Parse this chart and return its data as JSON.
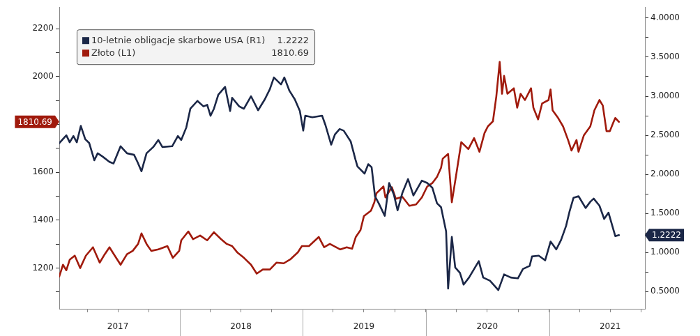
{
  "chart_data": {
    "type": "line",
    "legend": "top left",
    "grid": false,
    "annotations": [
      "1.2222",
      "1810.69"
    ],
    "xlim": [
      "2017-01-08",
      "2021-10-12"
    ],
    "xticks": [
      {
        "value": "2017-04-01",
        "label": null
      },
      {
        "value": "2017-07-01",
        "label": "2017"
      },
      {
        "value": "2017-10-01",
        "label": null
      },
      {
        "value": "2018-01-01",
        "label": null
      },
      {
        "value": "2018-04-01",
        "label": null
      },
      {
        "value": "2018-07-01",
        "label": "2018"
      },
      {
        "value": "2018-10-01",
        "label": null
      },
      {
        "value": "2019-01-01",
        "label": null
      },
      {
        "value": "2019-04-01",
        "label": null
      },
      {
        "value": "2019-07-01",
        "label": "2019"
      },
      {
        "value": "2019-10-01",
        "label": null
      },
      {
        "value": "2020-01-01",
        "label": null
      },
      {
        "value": "2020-04-01",
        "label": null
      },
      {
        "value": "2020-07-01",
        "label": "2020"
      },
      {
        "value": "2020-10-01",
        "label": null
      },
      {
        "value": "2021-01-01",
        "label": null
      },
      {
        "value": "2021-04-01",
        "label": null
      },
      {
        "value": "2021-07-01",
        "label": "2021"
      },
      {
        "value": "2021-10-01",
        "label": null
      }
    ],
    "ylim": [
      1030,
      2290
    ],
    "yticks": [
      {
        "value": 1100,
        "label": null
      },
      1200,
      {
        "value": 1300,
        "label": null
      },
      1400,
      {
        "value": 1500,
        "label": null
      },
      1600,
      {
        "value": 1700,
        "label": null
      },
      {
        "value": 1800,
        "label": null
      },
      {
        "value": 1900,
        "label": null
      },
      2000,
      {
        "value": 2100,
        "label": null
      },
      2200
    ],
    "y2lim": [
      0.28,
      4.14
    ],
    "y2ticks": [
      {
        "value": 0.5,
        "label": "0.5000"
      },
      {
        "value": 0.75,
        "label": null
      },
      {
        "value": 1,
        "label": "1.0000"
      },
      {
        "value": 1.25,
        "label": null
      },
      {
        "value": 1.5,
        "label": "1.5000"
      },
      {
        "value": 1.75,
        "label": null
      },
      {
        "value": 2,
        "label": "2.0000"
      },
      {
        "value": 2.25,
        "label": null
      },
      {
        "value": 2.5,
        "label": "2.5000"
      },
      {
        "value": 2.75,
        "label": null
      },
      {
        "value": 3,
        "label": "3.0000"
      },
      {
        "value": 3.25,
        "label": null
      },
      {
        "value": 3.5,
        "label": "3.5000"
      },
      {
        "value": 3.75,
        "label": null
      },
      {
        "value": 4,
        "label": "4.0000"
      }
    ],
    "series": [
      {
        "name": "10-letnie obligacje skarbowe USA (R1)",
        "color": "#1b2747",
        "axis": "y2",
        "x": [
          "2017-01-08",
          "2017-01-29",
          "2017-02-08",
          "2017-02-19",
          "2017-03-01",
          "2017-03-13",
          "2017-03-26",
          "2017-04-07",
          "2017-04-22",
          "2017-05-02",
          "2017-05-16",
          "2017-06-06",
          "2017-06-18",
          "2017-07-09",
          "2017-07-28",
          "2017-08-18",
          "2017-08-28",
          "2017-09-09",
          "2017-09-24",
          "2017-10-14",
          "2017-10-29",
          "2017-11-10",
          "2017-12-09",
          "2017-12-26",
          "2018-01-05",
          "2018-01-20",
          "2018-02-01",
          "2018-02-22",
          "2018-03-12",
          "2018-03-23",
          "2018-04-02",
          "2018-04-12",
          "2018-04-25",
          "2018-05-15",
          "2018-05-30",
          "2018-06-05",
          "2018-06-26",
          "2018-07-10",
          "2018-07-31",
          "2018-08-21",
          "2018-09-10",
          "2018-09-25",
          "2018-10-07",
          "2018-10-28",
          "2018-11-07",
          "2018-11-22",
          "2018-12-08",
          "2018-12-23",
          "2019-01-02",
          "2019-01-08",
          "2019-01-29",
          "2019-02-27",
          "2019-03-09",
          "2019-03-26",
          "2019-04-06",
          "2019-04-20",
          "2019-05-02",
          "2019-05-23",
          "2019-06-06",
          "2019-06-12",
          "2019-07-03",
          "2019-07-14",
          "2019-07-24",
          "2019-08-03",
          "2019-08-14",
          "2019-09-01",
          "2019-09-14",
          "2019-09-28",
          "2019-10-09",
          "2019-10-23",
          "2019-11-09",
          "2019-11-25",
          "2019-12-20",
          "2020-01-05",
          "2020-01-20",
          "2020-02-03",
          "2020-02-15",
          "2020-03-01",
          "2020-03-07",
          "2020-03-18",
          "2020-03-28",
          "2020-04-11",
          "2020-04-22",
          "2020-05-08",
          "2020-06-06",
          "2020-06-19",
          "2020-07-09",
          "2020-08-03",
          "2020-08-20",
          "2020-09-09",
          "2020-09-30",
          "2020-10-15",
          "2020-11-04",
          "2020-11-11",
          "2020-12-01",
          "2020-12-20",
          "2021-01-05",
          "2021-01-22",
          "2021-02-05",
          "2021-02-20",
          "2021-03-02",
          "2021-03-14",
          "2021-03-29",
          "2021-04-19",
          "2021-05-03",
          "2021-05-13",
          "2021-05-30",
          "2021-06-13",
          "2021-06-26",
          "2021-07-10",
          "2021-07-16",
          "2021-07-27"
        ],
        "values": [
          2.4,
          2.5,
          2.41,
          2.49,
          2.41,
          2.62,
          2.45,
          2.4,
          2.18,
          2.27,
          2.23,
          2.16,
          2.14,
          2.36,
          2.27,
          2.25,
          2.16,
          2.04,
          2.27,
          2.35,
          2.44,
          2.35,
          2.36,
          2.49,
          2.44,
          2.6,
          2.84,
          2.94,
          2.87,
          2.89,
          2.75,
          2.84,
          3.02,
          3.12,
          2.81,
          2.98,
          2.87,
          2.84,
          3.0,
          2.82,
          2.96,
          3.09,
          3.24,
          3.15,
          3.24,
          3.07,
          2.96,
          2.81,
          2.56,
          2.75,
          2.73,
          2.75,
          2.63,
          2.38,
          2.51,
          2.58,
          2.56,
          2.42,
          2.19,
          2.1,
          2.01,
          2.13,
          2.09,
          1.72,
          1.63,
          1.47,
          1.89,
          1.74,
          1.54,
          1.76,
          1.94,
          1.73,
          1.92,
          1.89,
          1.83,
          1.63,
          1.58,
          1.27,
          0.54,
          1.2,
          0.81,
          0.74,
          0.59,
          0.68,
          0.89,
          0.68,
          0.64,
          0.52,
          0.72,
          0.68,
          0.67,
          0.79,
          0.83,
          0.95,
          0.96,
          0.9,
          1.14,
          1.04,
          1.16,
          1.34,
          1.52,
          1.7,
          1.72,
          1.57,
          1.65,
          1.69,
          1.6,
          1.43,
          1.51,
          1.3,
          1.21,
          1.2222
        ]
      },
      {
        "name": "Złoto (L1)",
        "color": "#a01a0c",
        "x": [
          "2017-01-08",
          "2017-01-19",
          "2017-01-29",
          "2017-02-08",
          "2017-02-23",
          "2017-03-11",
          "2017-03-28",
          "2017-04-18",
          "2017-05-08",
          "2017-05-23",
          "2017-06-06",
          "2017-06-23",
          "2017-07-09",
          "2017-07-28",
          "2017-08-14",
          "2017-08-30",
          "2017-09-09",
          "2017-09-24",
          "2017-10-08",
          "2017-10-29",
          "2017-11-25",
          "2017-12-11",
          "2017-12-30",
          "2018-01-05",
          "2018-01-26",
          "2018-02-09",
          "2018-03-02",
          "2018-03-23",
          "2018-04-12",
          "2018-05-03",
          "2018-05-20",
          "2018-06-05",
          "2018-06-20",
          "2018-07-10",
          "2018-07-31",
          "2018-08-17",
          "2018-09-04",
          "2018-09-25",
          "2018-10-15",
          "2018-11-05",
          "2018-11-26",
          "2018-12-17",
          "2018-12-29",
          "2019-01-19",
          "2019-02-17",
          "2019-03-05",
          "2019-03-22",
          "2019-04-22",
          "2019-05-11",
          "2019-05-27",
          "2019-06-07",
          "2019-06-21",
          "2019-07-01",
          "2019-07-22",
          "2019-08-01",
          "2019-08-07",
          "2019-08-28",
          "2019-09-03",
          "2019-09-22",
          "2019-10-04",
          "2019-10-23",
          "2019-11-13",
          "2019-12-03",
          "2019-12-20",
          "2020-01-05",
          "2020-01-20",
          "2020-02-03",
          "2020-02-15",
          "2020-02-20",
          "2020-03-07",
          "2020-03-18",
          "2020-04-01",
          "2020-04-15",
          "2020-05-06",
          "2020-05-23",
          "2020-06-08",
          "2020-06-23",
          "2020-07-03",
          "2020-07-18",
          "2020-07-28",
          "2020-08-07",
          "2020-08-14",
          "2020-08-20",
          "2020-08-30",
          "2020-09-18",
          "2020-09-28",
          "2020-10-08",
          "2020-10-21",
          "2020-11-08",
          "2020-11-15",
          "2020-11-29",
          "2020-12-11",
          "2020-12-30",
          "2021-01-05",
          "2021-01-11",
          "2021-01-26",
          "2021-02-11",
          "2021-02-26",
          "2021-03-08",
          "2021-03-23",
          "2021-03-29",
          "2021-04-14",
          "2021-05-03",
          "2021-05-15",
          "2021-05-30",
          "2021-06-09",
          "2021-06-20",
          "2021-06-30",
          "2021-07-10",
          "2021-07-16",
          "2021-07-27"
        ],
        "values": [
          1165,
          1214,
          1191,
          1235,
          1252,
          1200,
          1252,
          1287,
          1223,
          1258,
          1287,
          1249,
          1214,
          1258,
          1272,
          1301,
          1345,
          1301,
          1272,
          1278,
          1292,
          1243,
          1272,
          1316,
          1353,
          1321,
          1336,
          1316,
          1350,
          1321,
          1301,
          1292,
          1266,
          1243,
          1214,
          1177,
          1194,
          1194,
          1223,
          1220,
          1238,
          1266,
          1292,
          1292,
          1330,
          1287,
          1301,
          1278,
          1287,
          1281,
          1330,
          1359,
          1417,
          1440,
          1475,
          1512,
          1541,
          1495,
          1538,
          1489,
          1498,
          1460,
          1466,
          1495,
          1541,
          1555,
          1581,
          1619,
          1657,
          1677,
          1475,
          1599,
          1726,
          1697,
          1743,
          1686,
          1764,
          1792,
          1813,
          1917,
          2061,
          1928,
          2003,
          1928,
          1951,
          1870,
          1928,
          1902,
          1951,
          1870,
          1821,
          1888,
          1902,
          1946,
          1859,
          1830,
          1792,
          1735,
          1691,
          1735,
          1686,
          1755,
          1792,
          1859,
          1902,
          1879,
          1772,
          1772,
          1807,
          1827,
          1810.69
        ]
      }
    ]
  }
}
